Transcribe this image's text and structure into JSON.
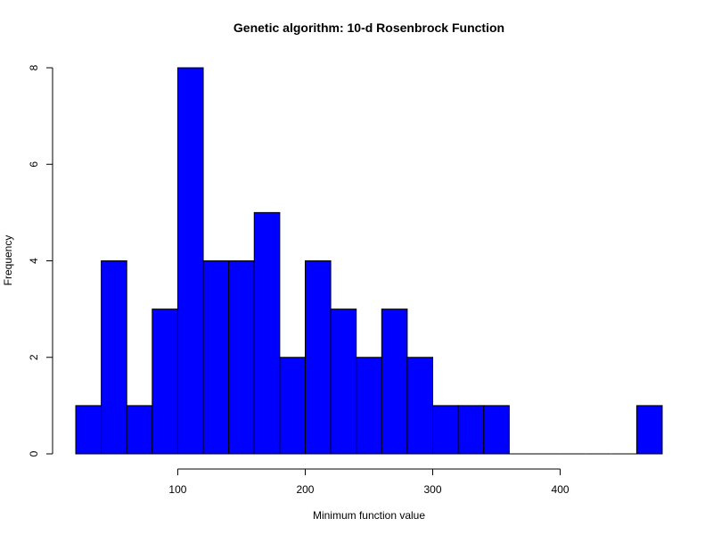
{
  "chart_data": {
    "type": "bar",
    "title": "Genetic algorithm: 10-d Rosenbrock Function",
    "xlabel": "Minimum function value",
    "ylabel": "Frequency",
    "bar_color": "#0000ff",
    "border_color": "#000000",
    "bin_width": 20,
    "bins": [
      {
        "start": 20,
        "end": 40,
        "count": 1
      },
      {
        "start": 40,
        "end": 60,
        "count": 4
      },
      {
        "start": 60,
        "end": 80,
        "count": 1
      },
      {
        "start": 80,
        "end": 100,
        "count": 3
      },
      {
        "start": 100,
        "end": 120,
        "count": 8
      },
      {
        "start": 120,
        "end": 140,
        "count": 4
      },
      {
        "start": 140,
        "end": 160,
        "count": 4
      },
      {
        "start": 160,
        "end": 180,
        "count": 5
      },
      {
        "start": 180,
        "end": 200,
        "count": 2
      },
      {
        "start": 200,
        "end": 220,
        "count": 4
      },
      {
        "start": 220,
        "end": 240,
        "count": 3
      },
      {
        "start": 240,
        "end": 260,
        "count": 2
      },
      {
        "start": 260,
        "end": 280,
        "count": 3
      },
      {
        "start": 280,
        "end": 300,
        "count": 2
      },
      {
        "start": 300,
        "end": 320,
        "count": 1
      },
      {
        "start": 320,
        "end": 340,
        "count": 1
      },
      {
        "start": 340,
        "end": 360,
        "count": 1
      },
      {
        "start": 360,
        "end": 380,
        "count": 0
      },
      {
        "start": 380,
        "end": 400,
        "count": 0
      },
      {
        "start": 400,
        "end": 420,
        "count": 0
      },
      {
        "start": 420,
        "end": 440,
        "count": 0
      },
      {
        "start": 440,
        "end": 460,
        "count": 0
      },
      {
        "start": 460,
        "end": 480,
        "count": 1
      }
    ],
    "x_ticks": [
      100,
      200,
      300,
      400
    ],
    "x_tick_labels": [
      "100",
      "200",
      "300",
      "400"
    ],
    "y_ticks": [
      0,
      2,
      4,
      6,
      8
    ],
    "y_tick_labels": [
      "0",
      "2",
      "4",
      "6",
      "8"
    ],
    "xlim": [
      20,
      480
    ],
    "ylim": [
      0,
      8
    ],
    "grid": false,
    "legend": "none"
  }
}
